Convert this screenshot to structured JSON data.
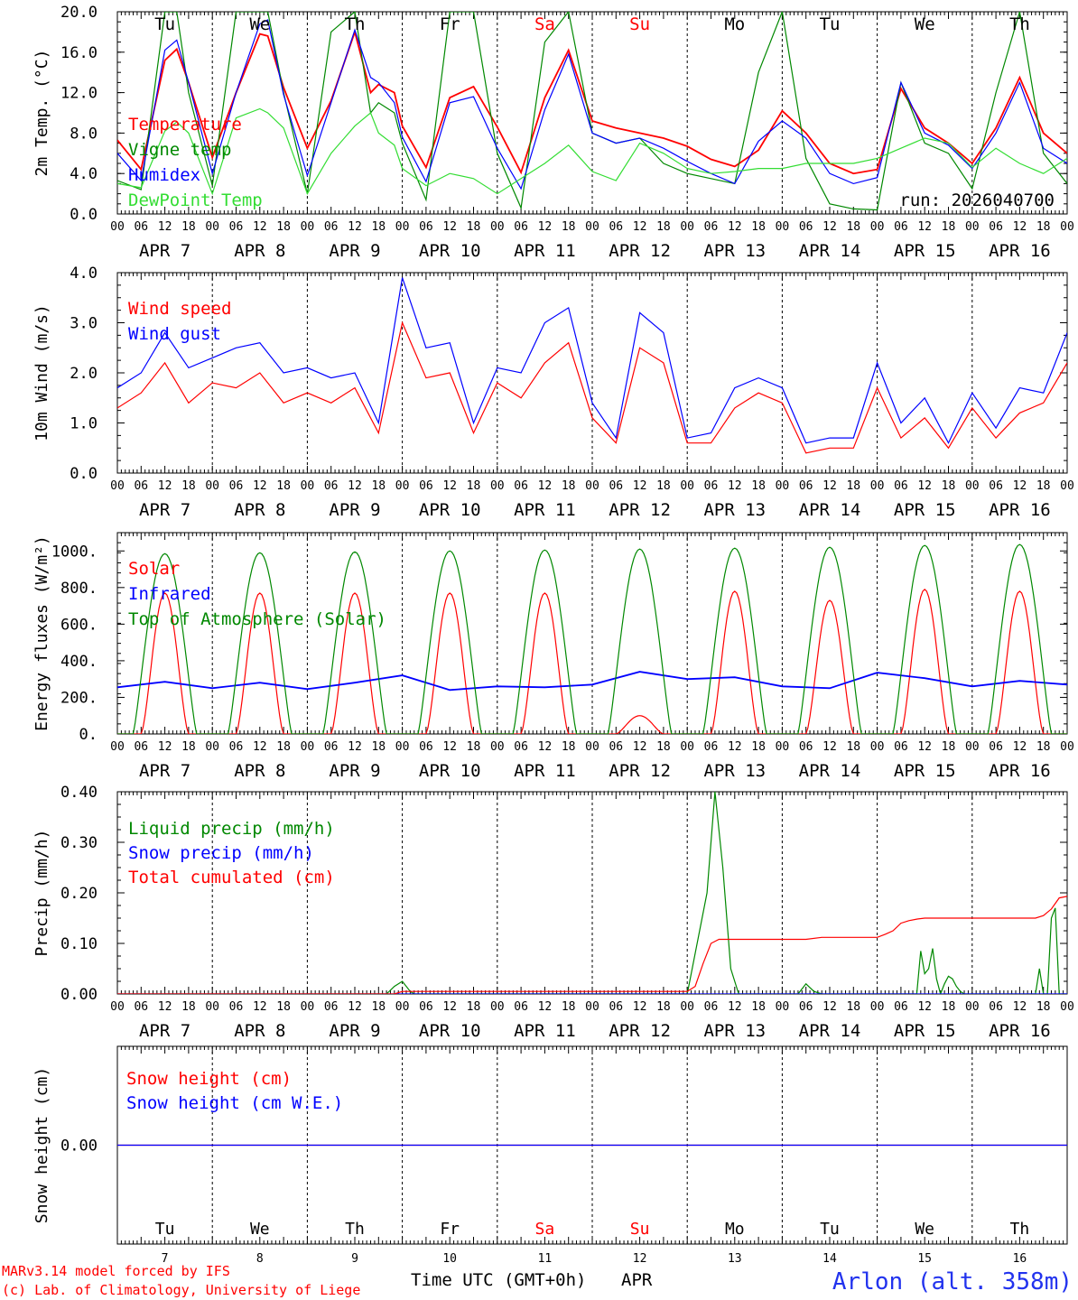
{
  "chart_data": [
    {
      "type": "line",
      "id": "temp",
      "ylabel": "2m Temp. (°C)",
      "ylim": [
        0,
        20
      ],
      "yticks": [
        "0.0",
        "4.0",
        "8.0",
        "12.0",
        "16.0",
        "20.0"
      ],
      "days_top": [
        "Tu",
        "We",
        "Th",
        "Fr",
        "Sa",
        "Su",
        "Mo",
        "Tu",
        "We",
        "Th"
      ],
      "run": "run: 2026040700",
      "series": [
        {
          "name": "Temperature",
          "color": "#ff0000",
          "t": [
            0,
            6,
            12,
            15,
            18,
            24,
            30,
            36,
            38,
            42,
            48,
            54,
            60,
            64,
            66,
            70,
            72,
            78,
            84,
            90,
            96,
            102,
            108,
            114,
            120,
            126,
            132,
            138,
            144,
            150,
            156,
            162,
            168,
            174,
            180,
            186,
            192,
            198,
            204,
            210,
            216,
            222,
            228,
            234,
            240
          ],
          "v": [
            7.3,
            4.4,
            15.2,
            16.3,
            13,
            5.6,
            12,
            17.8,
            17.6,
            12.5,
            6.5,
            11.2,
            18.0,
            12.0,
            12.8,
            12.0,
            8.7,
            4.6,
            11.5,
            12.6,
            8.6,
            4.1,
            11.5,
            16.2,
            9.2,
            8.5,
            8.0,
            7.5,
            6.7,
            5.4,
            4.7,
            6.3,
            10.2,
            8.0,
            5.0,
            4.0,
            4.4,
            12.4,
            8.5,
            7.0,
            5.0,
            8.5,
            13.5,
            8.0,
            6.0
          ]
        },
        {
          "name": "Vigne temp",
          "color": "#008800",
          "t": [
            0,
            6,
            12,
            15,
            18,
            24,
            30,
            36,
            38,
            42,
            48,
            54,
            60,
            64,
            66,
            70,
            72,
            78,
            84,
            90,
            96,
            102,
            108,
            114,
            120,
            126,
            132,
            138,
            144,
            150,
            156,
            162,
            168,
            174,
            180,
            186,
            192,
            198,
            204,
            210,
            216,
            222,
            228,
            234,
            240
          ],
          "v": [
            3.3,
            2.4,
            20.0,
            20.0,
            12.0,
            2.8,
            20.0,
            20.0,
            20.0,
            12.0,
            2.0,
            18.0,
            20.0,
            10.0,
            11.0,
            10.0,
            7.0,
            1.4,
            20.0,
            20.0,
            6.0,
            0.6,
            17.0,
            20.0,
            8.0,
            7.0,
            7.5,
            5.0,
            4.0,
            3.5,
            3.0,
            14.0,
            20.0,
            5.5,
            1.0,
            0.5,
            0.4,
            13.0,
            7.0,
            6.0,
            2.5,
            12.0,
            20.0,
            6.0,
            3.0
          ]
        },
        {
          "name": "Humidex",
          "color": "#0000ff",
          "t": [
            0,
            6,
            12,
            15,
            18,
            24,
            30,
            36,
            38,
            42,
            48,
            54,
            60,
            64,
            66,
            70,
            72,
            78,
            84,
            90,
            96,
            102,
            108,
            114,
            120,
            126,
            132,
            138,
            144,
            150,
            156,
            162,
            168,
            174,
            180,
            186,
            192,
            198,
            204,
            210,
            216,
            222,
            228,
            234,
            240
          ],
          "v": [
            6.0,
            3.3,
            16.2,
            17.2,
            13.0,
            4.0,
            12.0,
            18.8,
            19.2,
            11.8,
            3.8,
            11.0,
            18.2,
            13.5,
            13.0,
            11.0,
            7.6,
            3.2,
            11.0,
            11.6,
            6.5,
            2.5,
            10.3,
            15.8,
            8.0,
            7.0,
            7.5,
            6.5,
            5.2,
            4.0,
            3.0,
            7.2,
            9.2,
            7.5,
            4.0,
            3.0,
            3.6,
            13.0,
            8.0,
            6.8,
            4.5,
            8.0,
            13.0,
            6.5,
            5.0
          ]
        },
        {
          "name": "DewPoint Temp",
          "color": "#33dd33",
          "t": [
            0,
            6,
            12,
            15,
            18,
            24,
            30,
            36,
            38,
            42,
            48,
            54,
            60,
            64,
            66,
            70,
            72,
            78,
            84,
            90,
            96,
            102,
            108,
            114,
            120,
            126,
            132,
            138,
            144,
            150,
            156,
            162,
            168,
            174,
            180,
            186,
            192,
            198,
            204,
            210,
            216,
            222,
            228,
            234,
            240
          ],
          "v": [
            3.0,
            2.6,
            8.2,
            9.1,
            8.0,
            2.0,
            9.5,
            10.4,
            10.0,
            8.5,
            2.0,
            6.0,
            8.7,
            10.0,
            8.0,
            6.8,
            4.5,
            2.8,
            4.0,
            3.5,
            2.0,
            3.5,
            5.0,
            6.8,
            4.2,
            3.3,
            7.0,
            6.0,
            4.5,
            4.0,
            4.2,
            4.5,
            4.5,
            5.0,
            5.0,
            5.0,
            5.5,
            6.5,
            7.5,
            7.0,
            4.6,
            6.5,
            5.0,
            4.0,
            5.5
          ]
        }
      ]
    },
    {
      "type": "line",
      "id": "wind",
      "ylabel": "10m Wind (m/s)",
      "ylim": [
        0,
        4
      ],
      "yticks": [
        "0.0",
        "1.0",
        "2.0",
        "3.0",
        "4.0"
      ],
      "series": [
        {
          "name": "Wind speed",
          "color": "#ff0000",
          "t": [
            0,
            6,
            12,
            18,
            24,
            30,
            36,
            42,
            48,
            54,
            60,
            66,
            72,
            78,
            84,
            90,
            96,
            102,
            108,
            114,
            120,
            126,
            132,
            138,
            144,
            150,
            156,
            162,
            168,
            174,
            180,
            186,
            192,
            198,
            204,
            210,
            216,
            222,
            228,
            234,
            240
          ],
          "v": [
            1.3,
            1.6,
            2.2,
            1.4,
            1.8,
            1.7,
            2.0,
            1.4,
            1.6,
            1.4,
            1.7,
            0.8,
            3.0,
            1.9,
            2.0,
            0.8,
            1.8,
            1.5,
            2.2,
            2.6,
            1.1,
            0.6,
            2.5,
            2.2,
            0.6,
            0.6,
            1.3,
            1.6,
            1.4,
            0.4,
            0.5,
            0.5,
            1.7,
            0.7,
            1.1,
            0.5,
            1.3,
            0.7,
            1.2,
            1.4,
            2.2
          ]
        },
        {
          "name": "Wind gust",
          "color": "#0000ff",
          "t": [
            0,
            6,
            12,
            18,
            24,
            30,
            36,
            42,
            48,
            54,
            60,
            66,
            72,
            78,
            84,
            90,
            96,
            102,
            108,
            114,
            120,
            126,
            132,
            138,
            144,
            150,
            156,
            162,
            168,
            174,
            180,
            186,
            192,
            198,
            204,
            210,
            216,
            222,
            228,
            234,
            240
          ],
          "v": [
            1.7,
            2.0,
            2.8,
            2.1,
            2.3,
            2.5,
            2.6,
            2.0,
            2.1,
            1.9,
            2.0,
            1.0,
            3.9,
            2.5,
            2.6,
            1.0,
            2.1,
            2.0,
            3.0,
            3.3,
            1.4,
            0.7,
            3.2,
            2.8,
            0.7,
            0.8,
            1.7,
            1.9,
            1.7,
            0.6,
            0.7,
            0.7,
            2.2,
            1.0,
            1.5,
            0.6,
            1.6,
            0.9,
            1.7,
            1.6,
            2.8
          ]
        }
      ]
    },
    {
      "type": "line",
      "id": "energy",
      "ylabel": "Energy fluxes (W/m²)",
      "ylim": [
        0,
        1100
      ],
      "yticks": [
        "0.",
        "200.",
        "400.",
        "600.",
        "800.",
        "1000."
      ],
      "series": [
        {
          "name": "Solar",
          "color": "#ff0000",
          "daily_peaks": [
            770,
            770,
            770,
            770,
            770,
            100,
            780,
            730,
            790,
            780
          ]
        },
        {
          "name": "Infrared",
          "color": "#0000ff",
          "t": [
            0,
            12,
            24,
            36,
            48,
            60,
            72,
            84,
            96,
            108,
            120,
            132,
            144,
            156,
            168,
            180,
            192,
            204,
            216,
            228,
            240
          ],
          "v": [
            255,
            285,
            250,
            280,
            245,
            280,
            320,
            240,
            260,
            255,
            270,
            340,
            300,
            310,
            260,
            250,
            335,
            305,
            260,
            290,
            270
          ]
        },
        {
          "name": "Top of Atmosphere (Solar)",
          "color": "#008800",
          "daily_peaks": [
            985,
            990,
            995,
            1000,
            1005,
            1010,
            1015,
            1020,
            1030,
            1035
          ]
        }
      ]
    },
    {
      "type": "line",
      "id": "precip",
      "ylabel": "Precip (mm/h)",
      "ylim": [
        0,
        0.4
      ],
      "yticks": [
        "0.00",
        "0.10",
        "0.20",
        "0.30",
        "0.40"
      ],
      "series": [
        {
          "name": "Liquid precip (mm/h)",
          "color": "#008800",
          "t": [
            0,
            68,
            70,
            72,
            74,
            75,
            144,
            149,
            151,
            153,
            155,
            157,
            168,
            172,
            174,
            176,
            178,
            180,
            192,
            202,
            203,
            204,
            205,
            206,
            207,
            208,
            209,
            210,
            211,
            212,
            213,
            214,
            215,
            216,
            228,
            232,
            233,
            234,
            235,
            236,
            237,
            238,
            240
          ],
          "v": [
            0,
            0,
            0.015,
            0.025,
            0.005,
            0,
            0,
            0.2,
            0.4,
            0.25,
            0.05,
            0,
            0,
            0,
            0.02,
            0.005,
            0,
            0,
            0,
            0,
            0.085,
            0.04,
            0.05,
            0.09,
            0.03,
            0,
            0.02,
            0.035,
            0.03,
            0.015,
            0.005,
            0,
            0,
            0,
            0,
            0,
            0.05,
            0,
            0,
            0.15,
            0.17,
            0,
            0
          ]
        },
        {
          "name": "Snow precip (mm/h)",
          "color": "#0000ff",
          "t": [
            0,
            240
          ],
          "v": [
            0,
            0
          ]
        },
        {
          "name": "Total cumulated (cm)",
          "color": "#ff0000",
          "t": [
            0,
            70,
            72,
            144,
            146,
            148,
            150,
            152,
            174,
            178,
            192,
            194,
            196,
            198,
            200,
            202,
            204,
            232,
            234,
            236,
            238,
            240
          ],
          "v": [
            0,
            0,
            0.005,
            0.005,
            0.015,
            0.06,
            0.1,
            0.108,
            0.108,
            0.112,
            0.112,
            0.118,
            0.125,
            0.14,
            0.145,
            0.148,
            0.15,
            0.15,
            0.155,
            0.168,
            0.19,
            0.193
          ]
        }
      ]
    },
    {
      "type": "line",
      "id": "snow",
      "ylabel": "Snow height (cm)",
      "ylim": [
        -1,
        1
      ],
      "yticks": [
        "0.00"
      ],
      "series": [
        {
          "name": "Snow height (cm)",
          "color": "#ff0000",
          "t": [
            0,
            240
          ],
          "v": [
            0,
            0
          ]
        },
        {
          "name": "Snow height (cm W.E.)",
          "color": "#0000ff",
          "t": [
            0,
            240
          ],
          "v": [
            0,
            0
          ]
        }
      ]
    }
  ],
  "hours": [
    "00",
    "06",
    "12",
    "18"
  ],
  "dates": [
    "APR  7",
    "APR  8",
    "APR  9",
    "APR 10",
    "APR 11",
    "APR 12",
    "APR 13",
    "APR 14",
    "APR 15",
    "APR 16"
  ],
  "bottom_days": [
    "Tu",
    "We",
    "Th",
    "Fr",
    "Sa",
    "Su",
    "Mo",
    "Tu",
    "We",
    "Th"
  ],
  "bottom_day_nums": [
    "7",
    "8",
    "9",
    "10",
    "11",
    "12",
    "13",
    "14",
    "15",
    "16"
  ],
  "weekend_color": "#ff0000",
  "footer": {
    "model": "MARv3.14 model forced by IFS",
    "lab": "(c) Lab. of Climatology, University of Liege",
    "xlabel": "Time UTC (GMT+0h)",
    "month": "APR",
    "station": "Arlon (alt. 358m)"
  }
}
